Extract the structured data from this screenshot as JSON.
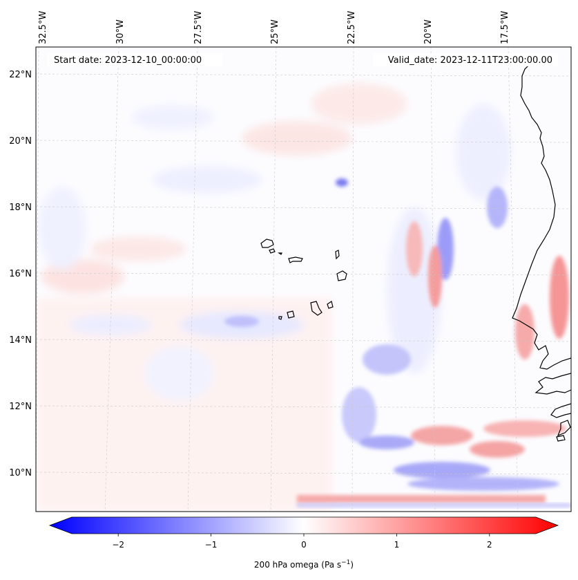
{
  "figure": {
    "start_date_label": "Start date: 2023-12-10_00:00:00",
    "valid_date_label": "Valid_date: 2023-12-11T23:00:00.00"
  },
  "map": {
    "longitude_labels": [
      "32.5°W",
      "30°W",
      "27.5°W",
      "25°W",
      "22.5°W",
      "20°W",
      "17.5°W"
    ],
    "latitude_labels": [
      "22°N",
      "20°N",
      "18°N",
      "16°N",
      "14°N",
      "12°N",
      "10°N"
    ],
    "field": "200 hPa vertical velocity (omega)",
    "region": "Cabo Verde islands and West African coast"
  },
  "colorbar": {
    "label": "200 hPa omega (Pa s",
    "label_superscript": "−1",
    "label_close": ")",
    "tick_labels": [
      "−2",
      "−1",
      "0",
      "1",
      "2"
    ],
    "tick_values": [
      -2,
      -1,
      0,
      1,
      2
    ],
    "range": [
      -2.5,
      2.5
    ],
    "negative_color": "#0000ff",
    "zero_color": "#ffffff",
    "positive_color": "#ff0000"
  }
}
